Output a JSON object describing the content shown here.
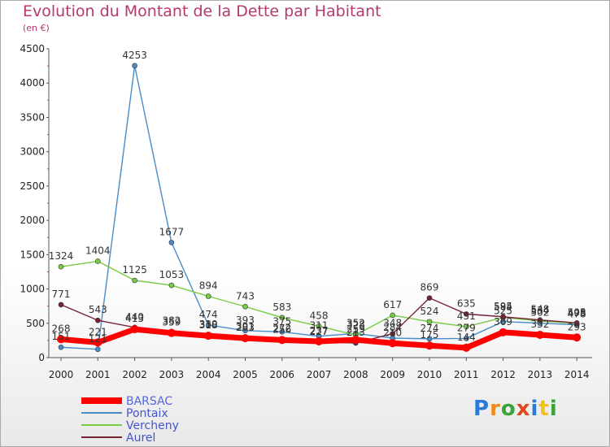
{
  "header": {
    "title": "Evolution du Montant de la Dette par Habitant",
    "subtitle": "(en €)"
  },
  "logo": {
    "text": "Proxiti"
  },
  "chart_data": {
    "type": "line",
    "title": "Evolution du Montant de la Dette par Habitant",
    "subtitle": "(en €)",
    "x": [
      "2000",
      "2001",
      "2002",
      "2003",
      "2004",
      "2005",
      "2006",
      "2007",
      "2008",
      "2009",
      "2010",
      "2011",
      "2012",
      "2013",
      "2014"
    ],
    "ylim": [
      0,
      4500
    ],
    "yticks": [
      0,
      500,
      1000,
      1500,
      2000,
      2500,
      3000,
      3500,
      4000,
      4500
    ],
    "grid": false,
    "legend_position": "bottom-left",
    "series": [
      {
        "name": "BARSAC",
        "color": "#ff0000",
        "values": [
          268,
          221,
          413,
          359,
          318,
          283,
          256,
          237,
          259,
          210,
          175,
          144,
          369,
          332,
          293
        ]
      },
      {
        "name": "Pontaix",
        "color": "#4a8cc8",
        "values": [
          151,
          121,
          4253,
          1677,
          474,
          393,
          375,
          311,
          352,
          284,
          274,
          279,
          525,
          502,
          478
        ]
      },
      {
        "name": "Vercheny",
        "color": "#77cc44",
        "values": [
          1324,
          1404,
          1125,
          1053,
          894,
          743,
          583,
          458,
          328,
          617,
          524,
          451,
          584,
          534,
          498
        ]
      },
      {
        "name": "Aurel",
        "color": "#772233",
        "values": [
          771,
          543,
          440,
          382,
          330,
          301,
          272,
          227,
          213,
          348,
          869,
          635,
          595,
          548,
          505
        ]
      }
    ]
  }
}
